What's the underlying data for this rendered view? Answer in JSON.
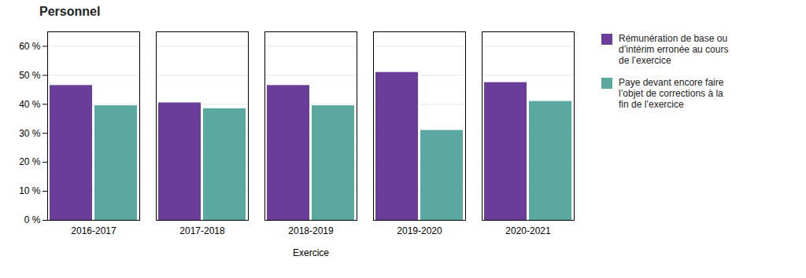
{
  "chart_data": {
    "type": "bar",
    "title": "Personnel",
    "xlabel": "Exercice",
    "categories": [
      "2016-2017",
      "2017-2018",
      "2018-2019",
      "2019-2020",
      "2020-2021"
    ],
    "series": [
      {
        "name": "Rémunération de base ou\nd’intérim erronée au cours\nde l’exercice",
        "color": "#6A3D9A",
        "values": [
          46.5,
          40.5,
          46.5,
          51.0,
          47.5
        ]
      },
      {
        "name": "Paye devant encore faire\nl’objet de corrections à la\nfin de l’exercice",
        "color": "#5BA8A0",
        "values": [
          39.5,
          38.5,
          39.5,
          31.0,
          41.0
        ]
      }
    ],
    "ylim": [
      0,
      65
    ],
    "yticks": [
      {
        "value": 0,
        "label": "0 %"
      },
      {
        "value": 10,
        "label": "10 %"
      },
      {
        "value": 20,
        "label": "20 %"
      },
      {
        "value": 30,
        "label": "30 %"
      },
      {
        "value": 40,
        "label": "40 %"
      },
      {
        "value": 50,
        "label": "50 %"
      },
      {
        "value": 60,
        "label": "60 %"
      }
    ],
    "grid": true,
    "legend": "right"
  }
}
